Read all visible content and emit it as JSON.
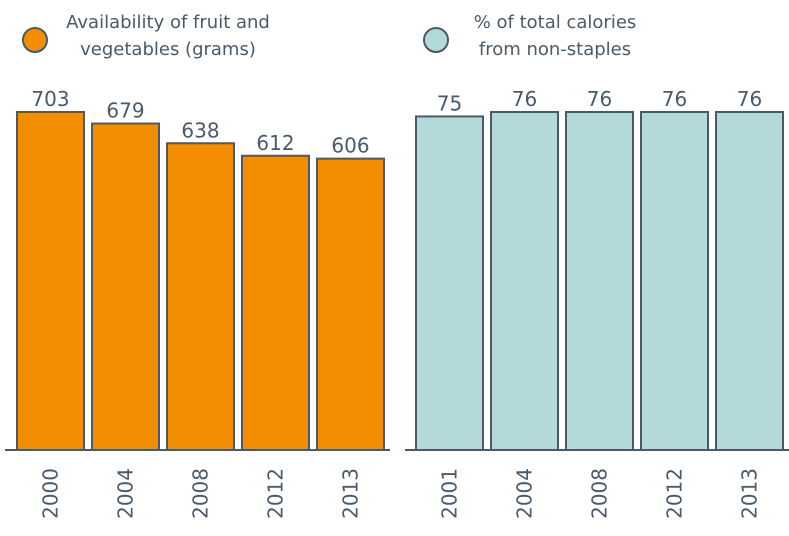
{
  "chart_data": [
    {
      "type": "bar",
      "categories": [
        "2000",
        "2004",
        "2008",
        "2012",
        "2013"
      ],
      "series": [
        {
          "name": "Availability of fruit and vegetables (grams)",
          "color": "#f28e00",
          "values": [
            703,
            679,
            638,
            612,
            606
          ]
        }
      ],
      "ylim": [
        0,
        703
      ]
    },
    {
      "type": "bar",
      "categories": [
        "2001",
        "2004",
        "2008",
        "2012",
        "2013"
      ],
      "series": [
        {
          "name": "% of total calories from non-staples",
          "color": "#b3d9d8",
          "values": [
            75,
            76,
            76,
            76,
            76
          ]
        }
      ],
      "ylim": [
        0,
        76
      ]
    }
  ]
}
